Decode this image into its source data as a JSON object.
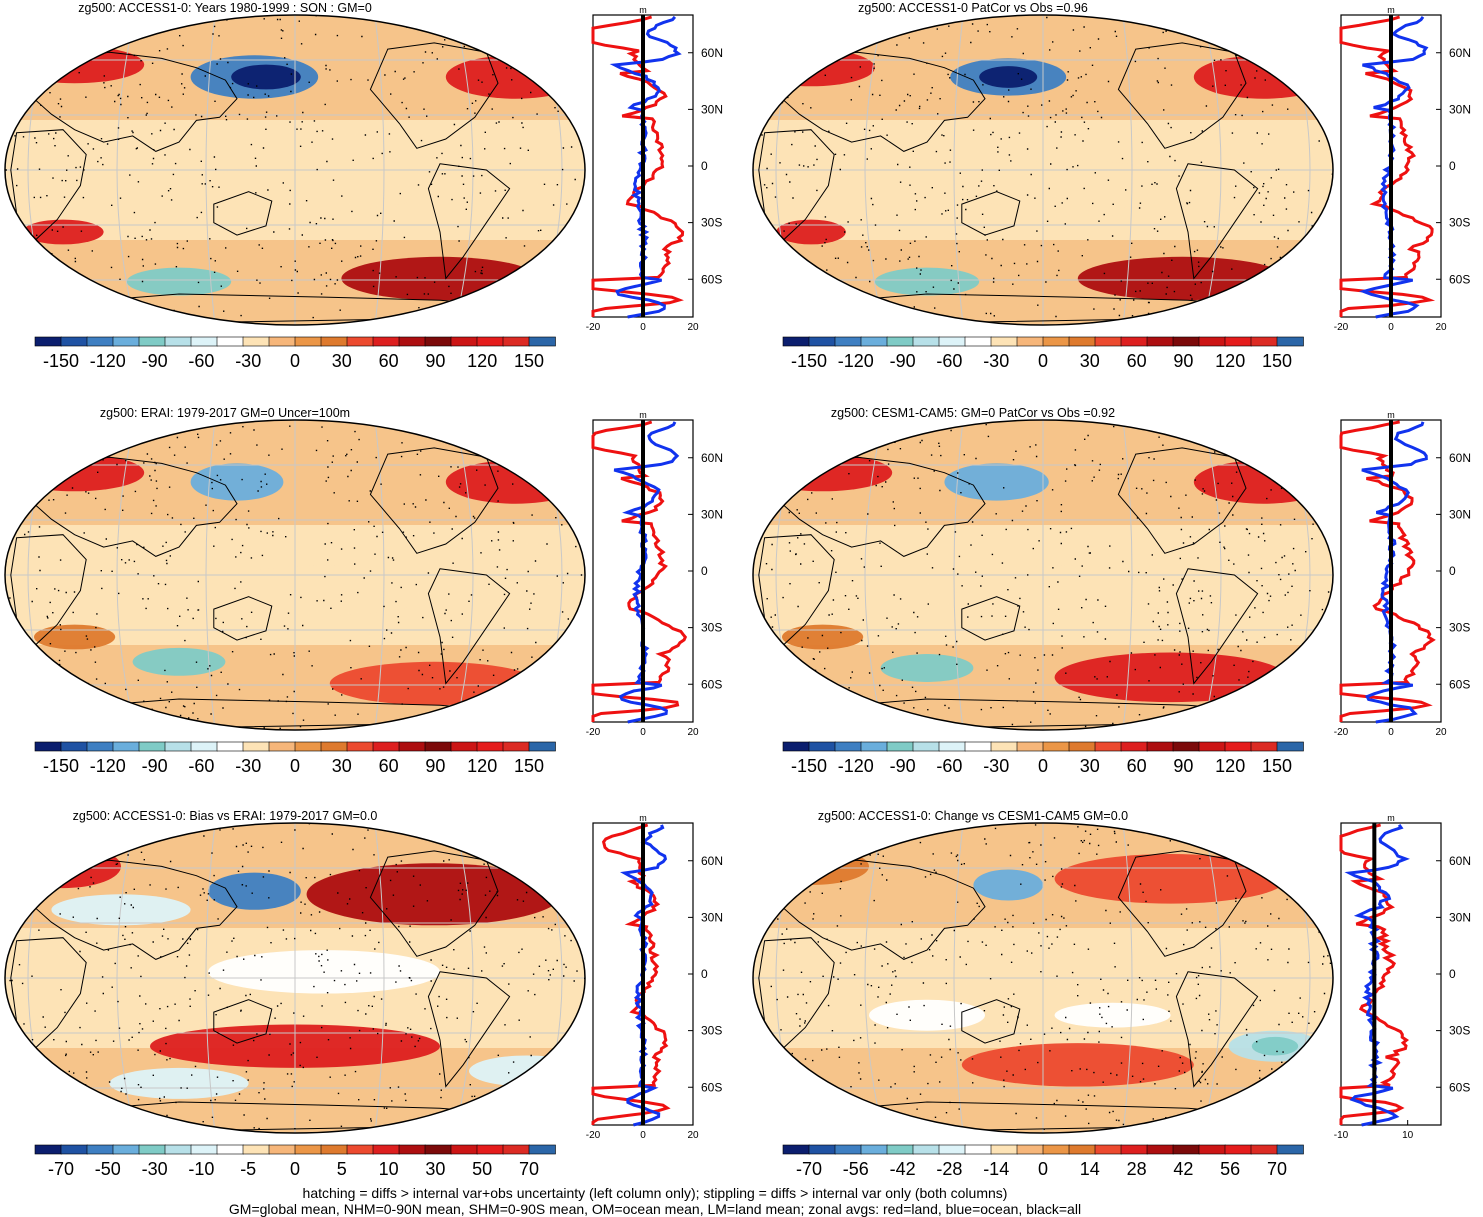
{
  "caption": {
    "line1": "hatching = diffs > internal var+obs uncertainty (left column only); stippling = diffs > internal var only (both columns)",
    "line2": "GM=global mean, NHM=0-90N mean, SHM=0-90S mean, OM=ocean mean, LM=land mean; zonal avgs: red=land, blue=ocean, black=all"
  },
  "colors": {
    "land_line": "#ee1111",
    "ocean_line": "#1133ee",
    "all_line": "#000000",
    "coast": "#000000",
    "graticule": "#c8c8c8",
    "stipple": "#000000"
  },
  "palette": [
    "#0b1e6e",
    "#1f52a3",
    "#3e7fc2",
    "#6aaedc",
    "#7fcbc6",
    "#b7e0e8",
    "#ddf3f8",
    "#ffffff",
    "#fde3b6",
    "#f6b67a",
    "#eb9647",
    "#de7a2e",
    "#ec4a2f",
    "#dd1f1f",
    "#ad0e10",
    "#7c0a0a",
    "#cc1515",
    "#e51c1c",
    "#dc2b24",
    "#2b66a8"
  ],
  "chart_data": [
    {
      "type": "heatmap",
      "title": "zg500: ACCESS1-0: Years 1980-1999 : SON : GM=0",
      "variable": "zg500",
      "colorbar_ticks": [
        "-150",
        "-120",
        "-90",
        "-60",
        "-30",
        "0",
        "30",
        "60",
        "90",
        "120",
        "150"
      ],
      "zonal_ticks": [
        "-20",
        "0",
        "20"
      ],
      "zonal_units": "m",
      "lat_ticks": [
        "60N",
        "30N",
        "0",
        "30S",
        "60S"
      ],
      "zonal_range": [
        -20,
        20
      ]
    },
    {
      "type": "heatmap",
      "title": "zg500: ACCESS1-0 PatCor vs Obs =0.96",
      "variable": "zg500",
      "colorbar_ticks": [
        "-150",
        "-120",
        "-90",
        "-60",
        "-30",
        "0",
        "30",
        "60",
        "90",
        "120",
        "150"
      ],
      "zonal_ticks": [
        "-20",
        "0",
        "20"
      ],
      "zonal_units": "m",
      "lat_ticks": [
        "60N",
        "30N",
        "0",
        "30S",
        "60S"
      ],
      "zonal_range": [
        -20,
        20
      ]
    },
    {
      "type": "heatmap",
      "title": "zg500: ERAI: 1979-2017 GM=0 Uncer=100m",
      "variable": "zg500",
      "colorbar_ticks": [
        "-150",
        "-120",
        "-90",
        "-60",
        "-30",
        "0",
        "30",
        "60",
        "90",
        "120",
        "150"
      ],
      "zonal_ticks": [
        "-20",
        "0",
        "20"
      ],
      "zonal_units": "m",
      "lat_ticks": [
        "60N",
        "30N",
        "0",
        "30S",
        "60S"
      ],
      "zonal_range": [
        -20,
        20
      ]
    },
    {
      "type": "heatmap",
      "title": "zg500: CESM1-CAM5: GM=0 PatCor vs Obs =0.92",
      "variable": "zg500",
      "colorbar_ticks": [
        "-150",
        "-120",
        "-90",
        "-60",
        "-30",
        "0",
        "30",
        "60",
        "90",
        "120",
        "150"
      ],
      "zonal_ticks": [
        "-20",
        "0",
        "20"
      ],
      "zonal_units": "m",
      "lat_ticks": [
        "60N",
        "30N",
        "0",
        "30S",
        "60S"
      ],
      "zonal_range": [
        -20,
        20
      ]
    },
    {
      "type": "heatmap",
      "title": "zg500: ACCESS1-0: Bias vs ERAI: 1979-2017  GM=0.0",
      "variable": "zg500",
      "colorbar_ticks": [
        "-70",
        "-50",
        "-30",
        "-10",
        "-5",
        "0",
        "5",
        "10",
        "30",
        "50",
        "70"
      ],
      "zonal_ticks": [
        "-20",
        "0",
        "20"
      ],
      "zonal_units": "m",
      "lat_ticks": [
        "60N",
        "30N",
        "0",
        "30S",
        "60S"
      ],
      "zonal_range": [
        -20,
        20
      ]
    },
    {
      "type": "heatmap",
      "title": "zg500: ACCESS1-0: Change vs CESM1-CAM5 GM=0.0",
      "variable": "zg500",
      "colorbar_ticks": [
        "-70",
        "-56",
        "-42",
        "-28",
        "-14",
        "0",
        "14",
        "28",
        "42",
        "56",
        "70"
      ],
      "zonal_ticks": [
        "-10",
        "10"
      ],
      "zonal_units": "m",
      "lat_ticks": [
        "60N",
        "30N",
        "0",
        "30S",
        "60S"
      ],
      "zonal_range": [
        -10,
        20
      ]
    }
  ]
}
